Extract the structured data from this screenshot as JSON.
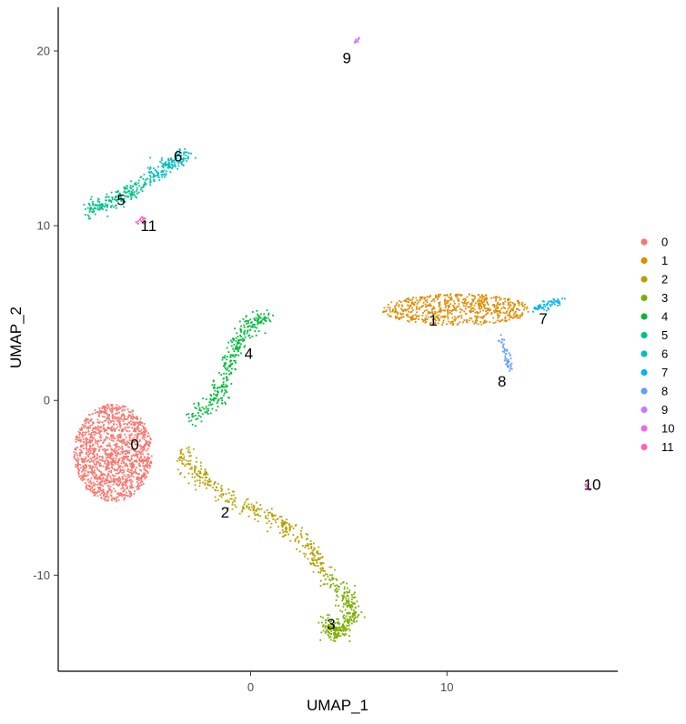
{
  "chart_data": {
    "type": "scatter",
    "title": "",
    "xlabel": "UMAP_1",
    "ylabel": "UMAP_2",
    "xlim": [
      -9.8,
      18.7
    ],
    "ylim": [
      -15.5,
      22.5
    ],
    "x_ticks": [
      0,
      10
    ],
    "y_ticks": [
      -10,
      0,
      10,
      20
    ],
    "grid": false,
    "legend_position": "right",
    "clusters": [
      {
        "name": "0",
        "color": "#F8766D",
        "label_pos": [
          -5.9,
          -2.5
        ],
        "shape": "blob",
        "center": [
          -7.0,
          -3.0
        ],
        "rx": 2.0,
        "ry": 2.8,
        "n": 1400
      },
      {
        "name": "1",
        "color": "#DE8C00",
        "label_pos": [
          9.3,
          4.6
        ],
        "shape": "blob",
        "center": [
          10.5,
          5.2
        ],
        "rx": 3.8,
        "ry": 0.9,
        "n": 650
      },
      {
        "name": "2",
        "color": "#B79F00",
        "label_pos": [
          -1.3,
          -6.4
        ],
        "shape": "path",
        "path": [
          [
            -3.5,
            -3.0
          ],
          [
            -2.5,
            -4.5
          ],
          [
            -0.5,
            -6.0
          ],
          [
            1.5,
            -7.0
          ],
          [
            3.0,
            -8.5
          ],
          [
            4.0,
            -10.0
          ]
        ],
        "width": 0.5,
        "n": 380
      },
      {
        "name": "3",
        "color": "#7CAE00",
        "label_pos": [
          4.1,
          -12.8
        ],
        "shape": "path",
        "path": [
          [
            4.0,
            -10.2
          ],
          [
            4.8,
            -11.0
          ],
          [
            5.2,
            -12.0
          ],
          [
            4.8,
            -13.0
          ],
          [
            4.2,
            -13.5
          ],
          [
            4.0,
            -12.6
          ]
        ],
        "width": 0.5,
        "n": 300
      },
      {
        "name": "4",
        "color": "#00BA38",
        "label_pos": [
          -0.1,
          2.7
        ],
        "shape": "path",
        "path": [
          [
            -3.0,
            -1.0
          ],
          [
            -1.6,
            0.2
          ],
          [
            -1.2,
            1.8
          ],
          [
            -0.7,
            3.3
          ],
          [
            0.0,
            4.4
          ],
          [
            0.8,
            4.8
          ]
        ],
        "width": 0.5,
        "n": 320
      },
      {
        "name": "5",
        "color": "#00C08B",
        "label_pos": [
          -6.6,
          11.5
        ],
        "shape": "path",
        "path": [
          [
            -8.2,
            10.8
          ],
          [
            -7.2,
            11.3
          ],
          [
            -6.2,
            12.0
          ],
          [
            -5.0,
            12.8
          ]
        ],
        "width": 0.5,
        "n": 200
      },
      {
        "name": "6",
        "color": "#00BFC4",
        "label_pos": [
          -3.7,
          14.0
        ],
        "shape": "path",
        "path": [
          [
            -5.0,
            12.8
          ],
          [
            -4.2,
            13.5
          ],
          [
            -3.3,
            14.1
          ]
        ],
        "width": 0.45,
        "n": 160
      },
      {
        "name": "7",
        "color": "#00B4F0",
        "label_pos": [
          14.9,
          4.7
        ],
        "shape": "path",
        "path": [
          [
            14.4,
            5.2
          ],
          [
            15.2,
            5.5
          ],
          [
            15.9,
            5.8
          ]
        ],
        "width": 0.25,
        "n": 60
      },
      {
        "name": "8",
        "color": "#619CFF",
        "label_pos": [
          12.8,
          1.1
        ],
        "shape": "path",
        "path": [
          [
            12.7,
            3.6
          ],
          [
            13.0,
            2.6
          ],
          [
            13.2,
            1.7
          ]
        ],
        "width": 0.2,
        "n": 50
      },
      {
        "name": "9",
        "color": "#C77CFF",
        "label_pos": [
          4.9,
          19.6
        ],
        "shape": "path",
        "path": [
          [
            5.3,
            20.5
          ],
          [
            5.6,
            20.8
          ]
        ],
        "width": 0.06,
        "n": 12
      },
      {
        "name": "10",
        "color": "#F564E3",
        "label_pos": [
          17.4,
          -4.8
        ],
        "shape": "path",
        "path": [
          [
            17.0,
            -4.8
          ],
          [
            17.3,
            -5.1
          ]
        ],
        "width": 0.06,
        "n": 12
      },
      {
        "name": "11",
        "color": "#FF64B0",
        "label_pos": [
          -5.2,
          10.0
        ],
        "shape": "blob",
        "center": [
          -5.6,
          10.3
        ],
        "rx": 0.3,
        "ry": 0.2,
        "n": 20
      }
    ]
  }
}
